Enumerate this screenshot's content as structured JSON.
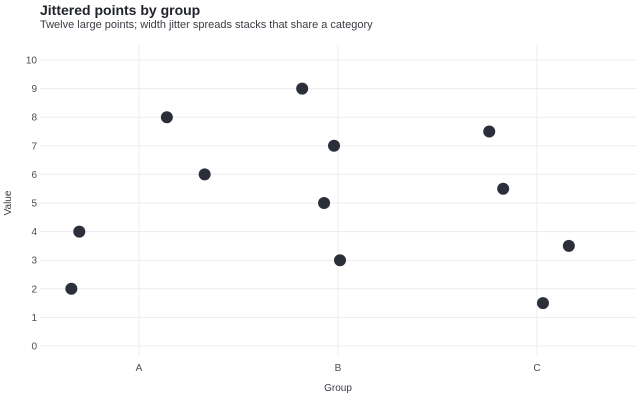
{
  "chart_data": {
    "type": "scatter",
    "title": "Jittered points by group",
    "subtitle": "Twelve large points; width jitter spreads stacks that share a category",
    "xlabel": "Group",
    "ylabel": "Value",
    "categories": [
      "A",
      "B",
      "C"
    ],
    "ylim": [
      0,
      10
    ],
    "yticks": [
      0,
      1,
      2,
      3,
      4,
      5,
      6,
      7,
      8,
      9,
      10
    ],
    "grid": true,
    "point_color": "#2b2f3a",
    "points": [
      {
        "group": "A",
        "jitter": -0.34,
        "value": 2
      },
      {
        "group": "A",
        "jitter": -0.3,
        "value": 4
      },
      {
        "group": "A",
        "jitter": 0.14,
        "value": 8
      },
      {
        "group": "A",
        "jitter": 0.33,
        "value": 6
      },
      {
        "group": "B",
        "jitter": -0.18,
        "value": 9
      },
      {
        "group": "B",
        "jitter": -0.02,
        "value": 7
      },
      {
        "group": "B",
        "jitter": -0.07,
        "value": 5
      },
      {
        "group": "B",
        "jitter": 0.01,
        "value": 3
      },
      {
        "group": "C",
        "jitter": -0.24,
        "value": 7.5
      },
      {
        "group": "C",
        "jitter": -0.17,
        "value": 5.5
      },
      {
        "group": "C",
        "jitter": 0.03,
        "value": 1.5
      },
      {
        "group": "C",
        "jitter": 0.16,
        "value": 3.5
      }
    ]
  }
}
